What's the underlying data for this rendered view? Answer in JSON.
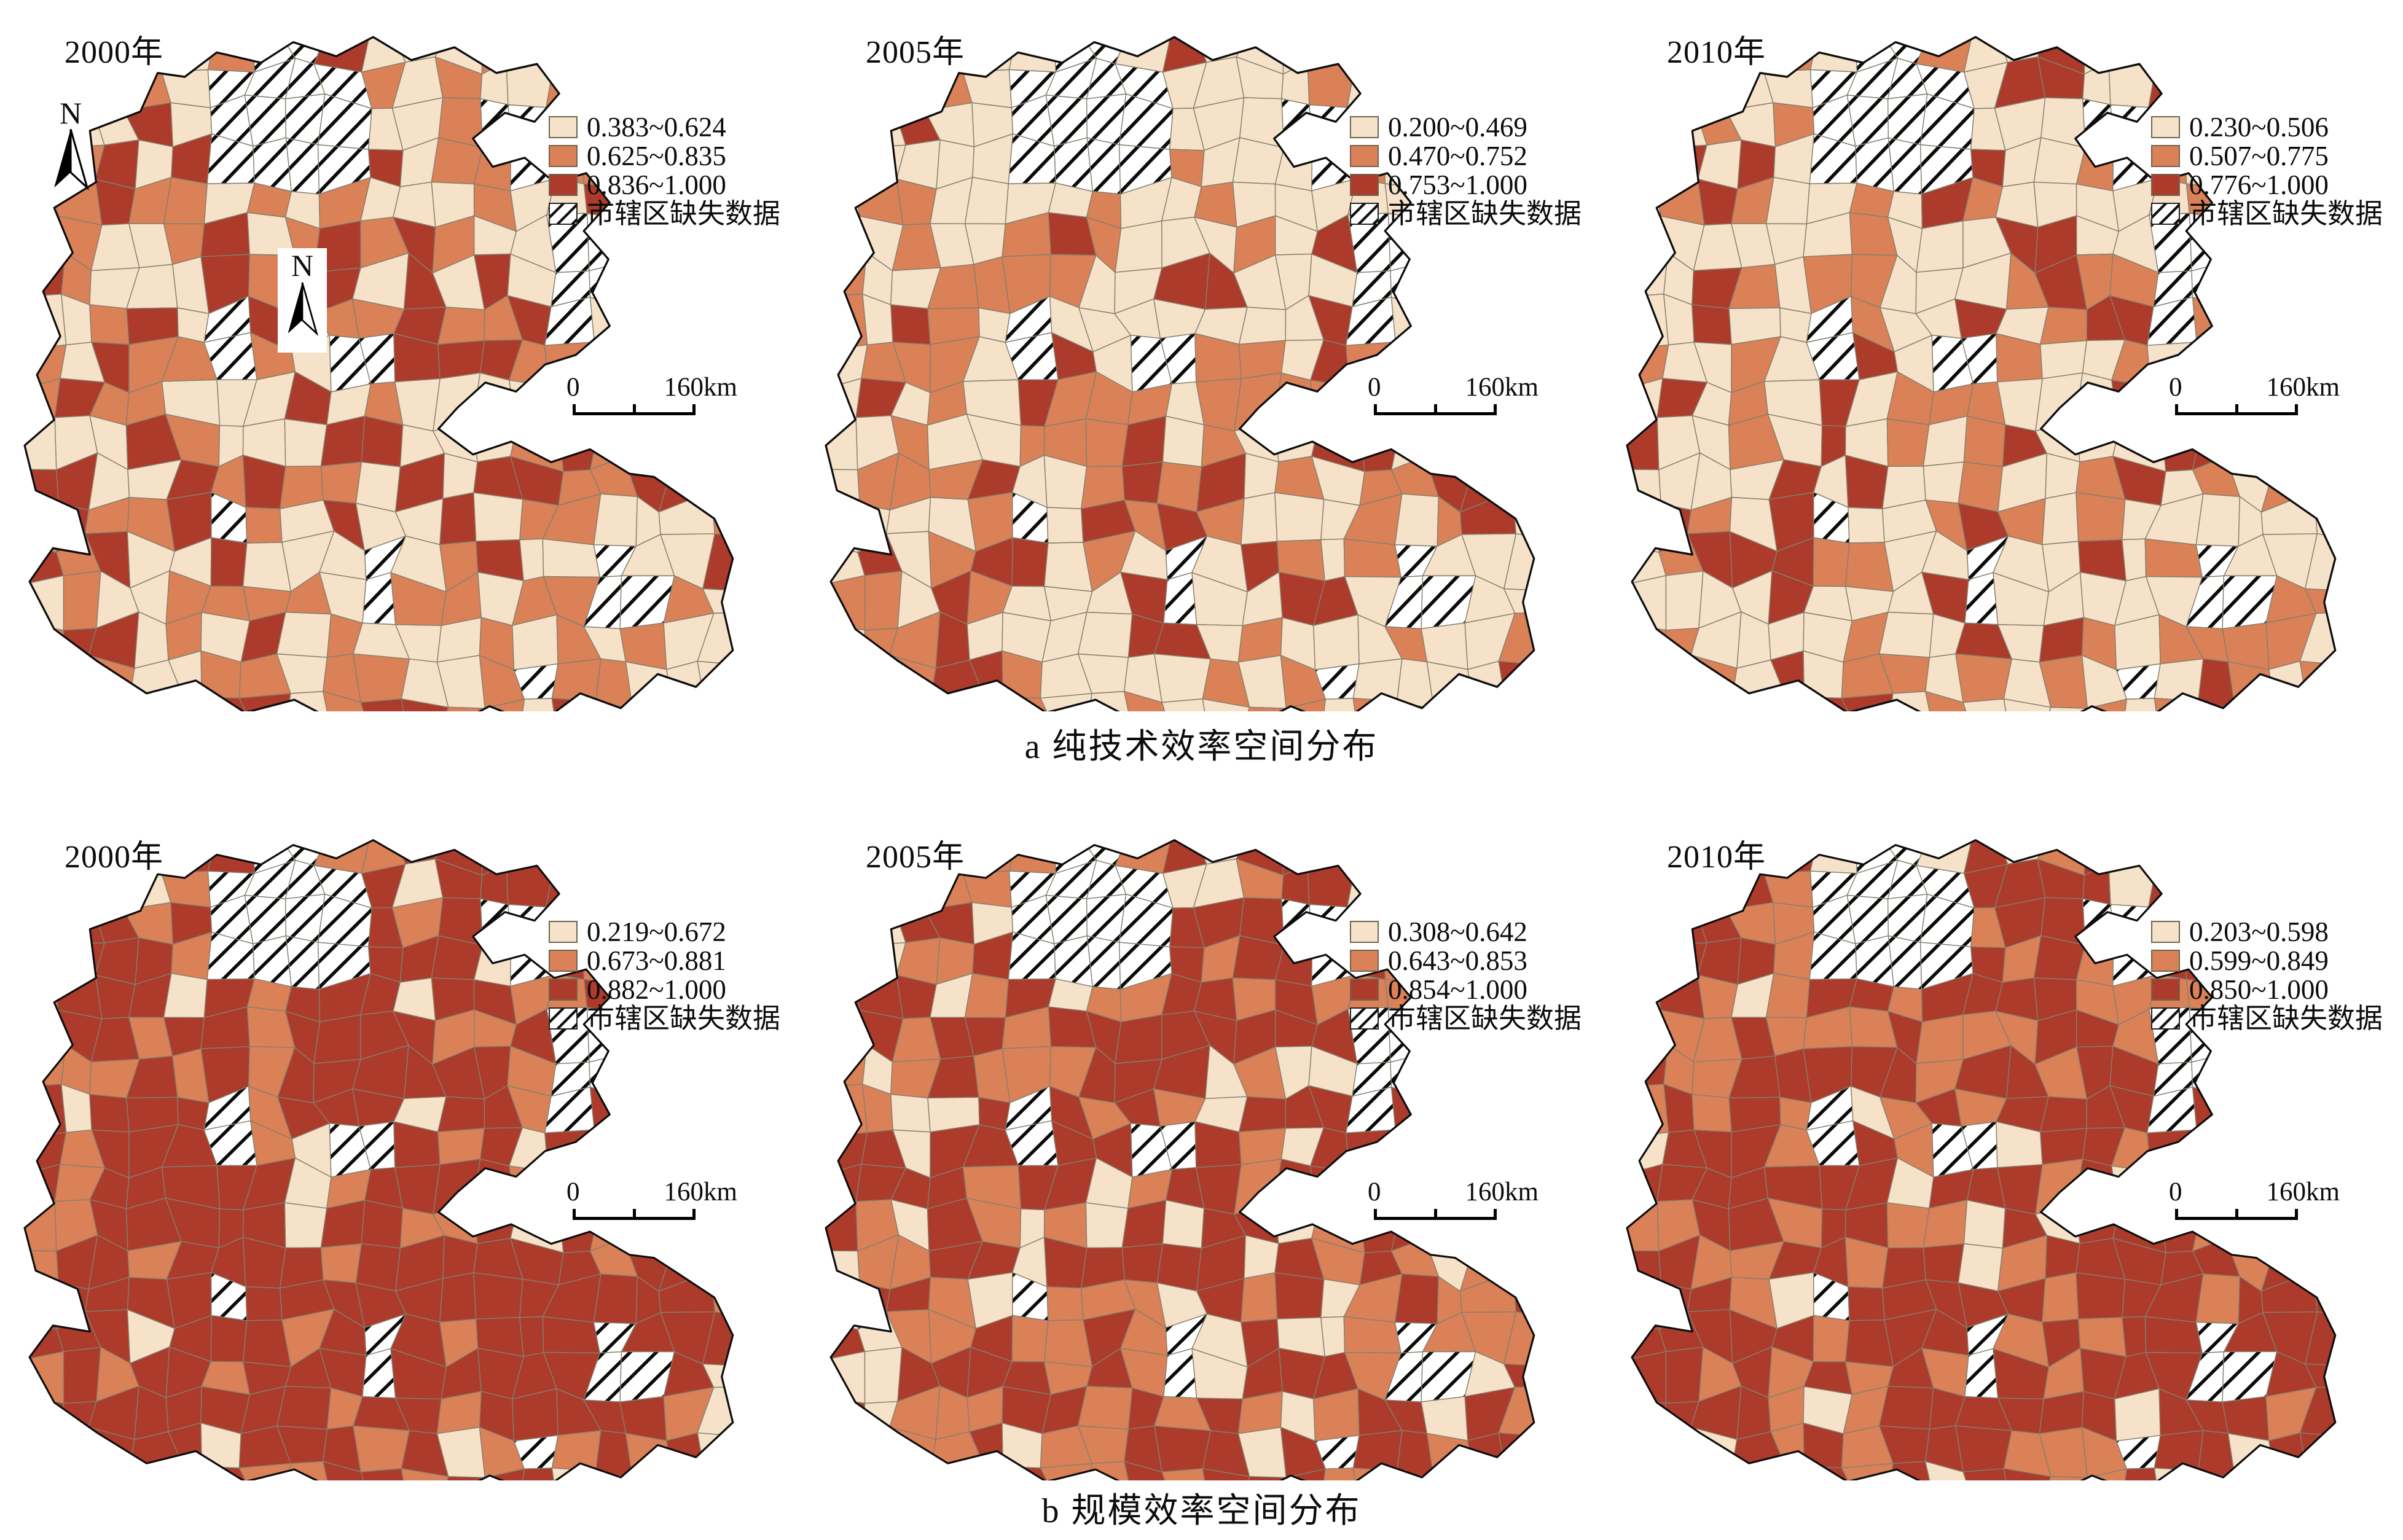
{
  "figure": {
    "caption_a": "a 纯技术效率空间分布",
    "caption_b": "b 规模效率空间分布"
  },
  "colors": {
    "class_low": "#F5E2C8",
    "class_mid": "#DA8158",
    "class_high": "#AC3B2B",
    "cell_border": "#857f6e",
    "outline": "#0d0d0d",
    "hatch_line": "#0a0a0a"
  },
  "north_label": "N",
  "scalebar": {
    "zero": "0",
    "distance": "160km"
  },
  "legend_missing": "市辖区缺失数据",
  "panels": [
    {
      "id": "a2000",
      "year": "2000年",
      "legend": [
        "0.383~0.624",
        "0.625~0.835",
        "0.836~1.000"
      ],
      "weights": [
        0.45,
        0.34,
        0.21
      ],
      "seed": 11
    },
    {
      "id": "a2005",
      "year": "2005年",
      "legend": [
        "0.200~0.469",
        "0.470~0.752",
        "0.753~1.000"
      ],
      "weights": [
        0.56,
        0.29,
        0.15
      ],
      "seed": 22
    },
    {
      "id": "a2010",
      "year": "2010年",
      "legend": [
        "0.230~0.506",
        "0.507~0.775",
        "0.776~1.000"
      ],
      "weights": [
        0.54,
        0.26,
        0.2
      ],
      "seed": 33
    },
    {
      "id": "b2000",
      "year": "2000年",
      "legend": [
        "0.219~0.672",
        "0.673~0.881",
        "0.882~1.000"
      ],
      "weights": [
        0.11,
        0.28,
        0.61
      ],
      "seed": 44
    },
    {
      "id": "b2005",
      "year": "2005年",
      "legend": [
        "0.308~0.642",
        "0.643~0.853",
        "0.854~1.000"
      ],
      "weights": [
        0.17,
        0.31,
        0.52
      ],
      "seed": 55
    },
    {
      "id": "b2010",
      "year": "2010年",
      "legend": [
        "0.203~0.598",
        "0.599~0.849",
        "0.850~1.000"
      ],
      "weights": [
        0.09,
        0.31,
        0.6
      ],
      "seed": 66
    }
  ]
}
